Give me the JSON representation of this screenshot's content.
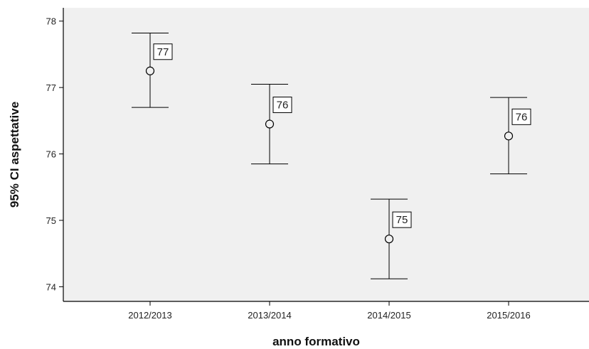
{
  "chart_data": {
    "type": "errorbar",
    "xlabel": "anno formativo",
    "ylabel": "95% CI aspettative",
    "categories": [
      "2012/2013",
      "2013/2014",
      "2014/2015",
      "2015/2016"
    ],
    "means": [
      77.25,
      76.45,
      74.72,
      76.27
    ],
    "ci_lower": [
      76.7,
      75.85,
      74.12,
      75.7
    ],
    "ci_upper": [
      77.82,
      77.05,
      75.32,
      76.85
    ],
    "data_labels": [
      "77",
      "76",
      "75",
      "76"
    ],
    "ylim": [
      73.78,
      78.2
    ],
    "yticks": [
      74,
      75,
      76,
      77,
      78
    ],
    "grid": false,
    "colors": {
      "plot_background": "#f0f0f0",
      "mark": "#000000",
      "axis": "#000000"
    }
  }
}
